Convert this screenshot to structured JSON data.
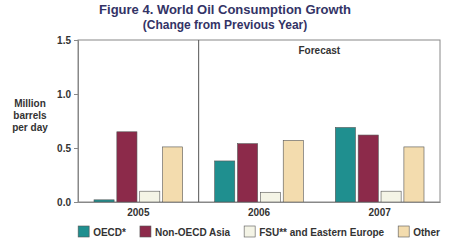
{
  "chart_data": {
    "type": "bar",
    "title": "Figure 4. World Oil Consumption Growth",
    "subtitle": "(Change from Previous Year)",
    "ylabel": "Million barrels per day",
    "annotation": "Forecast",
    "categories": [
      "2005",
      "2006",
      "2007"
    ],
    "series": [
      {
        "name": "OECD*",
        "color": "#1f8f8f",
        "values": [
          0.02,
          0.38,
          0.69
        ]
      },
      {
        "name": "Non-OECD Asia",
        "color": "#8c2a4a",
        "values": [
          0.65,
          0.54,
          0.62
        ]
      },
      {
        "name": "FSU** and Eastern Europe",
        "color": "#f4f4e6",
        "values": [
          0.1,
          0.09,
          0.1
        ]
      },
      {
        "name": "Other",
        "color": "#f3dcae",
        "values": [
          0.51,
          0.57,
          0.51
        ]
      }
    ],
    "ylim": [
      0,
      1.5
    ],
    "yticks": [
      {
        "value": 0,
        "label": "0.0"
      },
      {
        "value": 0.5,
        "label": "0.5"
      },
      {
        "value": 1,
        "label": "1.0"
      },
      {
        "value": 1.5,
        "label": "1.5"
      }
    ],
    "grid": false,
    "legend": "bottom"
  }
}
